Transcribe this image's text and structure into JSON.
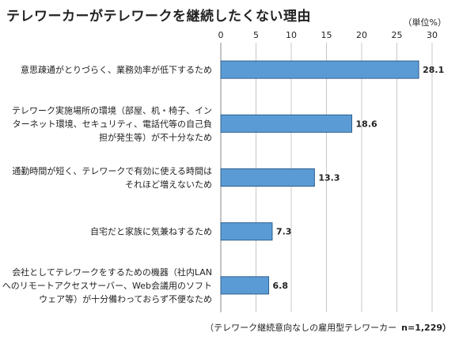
{
  "chart_data": {
    "type": "bar",
    "orientation": "horizontal",
    "title": "テレワーカーがテレワークを継続したくない理由",
    "unit_label": "（単位%）",
    "footnote": "（テレワーク継続意向なしの雇用型テレワーカー",
    "sample_size": "n=1,229）",
    "xlim": [
      0,
      30
    ],
    "x_ticks": [
      0,
      5,
      10,
      15,
      20,
      25,
      30
    ],
    "grid": true,
    "categories": [
      [
        "意思疎通がとりづらく、業務効率が低下するため"
      ],
      [
        "テレワーク実施場所の環境（部屋、机・椅子、イン",
        "ターネット環境、セキュリティ、電話代等の自己負",
        "担が発生等）が不十分なため"
      ],
      [
        "通勤時間が短く、テレワークで有効に使える時間は",
        "それほど増えないため"
      ],
      [
        "自宅だと家族に気兼ねするため"
      ],
      [
        "会社としてテレワークをするための機器（社内LAN",
        "へのリモートアクセスサーバー、Web会議用のソフト",
        "ウェア等）が十分備わっておらず不便なため"
      ]
    ],
    "values": [
      28.1,
      18.6,
      13.3,
      7.3,
      6.8
    ],
    "value_labels": [
      "28.1",
      "18.6",
      "13.3",
      "7.3",
      "6.8"
    ],
    "bar_color": "#5b9bd5",
    "bar_edge_color": "#2e5f8e"
  }
}
